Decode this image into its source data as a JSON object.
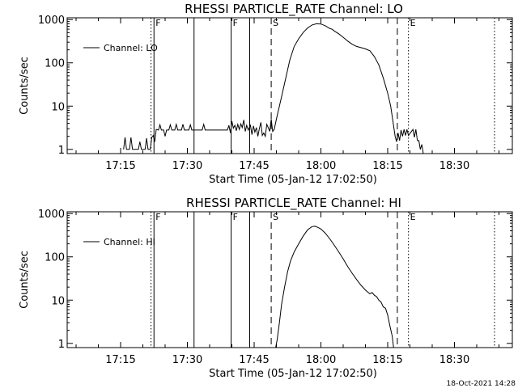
{
  "footer": {
    "date_stamp": "18-Oct-2021 14:28"
  },
  "chart_data": [
    {
      "type": "line",
      "title": "RHESSI PARTICLE_RATE Channel: LO",
      "xlabel": "Start Time (05-Jan-12 17:02:50)",
      "ylabel": "Counts/sec",
      "y_scale": "log",
      "xlim": [
        "17:03",
        "18:43"
      ],
      "ylim": [
        0.8,
        1100
      ],
      "x_ticks": [
        "17:15",
        "17:30",
        "17:45",
        "18:00",
        "18:15",
        "18:30"
      ],
      "y_ticks": [
        "1",
        "10",
        "100",
        "1000"
      ],
      "legend": {
        "label": "Channel: LO",
        "position": "top-left"
      },
      "markers": [
        {
          "time": "17:22:30",
          "label": "F",
          "style": "solid"
        },
        {
          "time": "17:31:30",
          "label": "",
          "style": "solid"
        },
        {
          "time": "17:39:50",
          "label": "F",
          "style": "solid"
        },
        {
          "time": "17:44:00",
          "label": "",
          "style": "solid"
        },
        {
          "time": "17:48:50",
          "label": "S",
          "style": "dashed"
        },
        {
          "time": "18:17:10",
          "label": "",
          "style": "dashed"
        },
        {
          "time": "18:19:40",
          "label": "E",
          "style": "dotted"
        },
        {
          "time": "17:21:50",
          "label": "",
          "style": "dotted"
        },
        {
          "time": "18:39:00",
          "label": "",
          "style": "dotted"
        }
      ],
      "series": [
        {
          "name": "Channel: LO",
          "points": [
            [
              "17:15:40",
              1
            ],
            [
              "17:16:00",
              1.9
            ],
            [
              "17:16:20",
              1
            ],
            [
              "17:17:00",
              1
            ],
            [
              "17:17:20",
              1.9
            ],
            [
              "17:17:40",
              1
            ],
            [
              "17:19:00",
              1
            ],
            [
              "17:19:20",
              1.5
            ],
            [
              "17:19:40",
              1
            ],
            [
              "17:20:30",
              1
            ],
            [
              "17:20:50",
              1.8
            ],
            [
              "17:21:10",
              1
            ],
            [
              "17:21:40",
              1
            ],
            [
              "17:22:00",
              1.9
            ],
            [
              "17:22:20",
              2.1
            ],
            [
              "17:22:40",
              1.5
            ],
            [
              "17:23:00",
              2.9
            ],
            [
              "17:23:30",
              2.8
            ],
            [
              "17:23:50",
              3.7
            ],
            [
              "17:24:10",
              2.8
            ],
            [
              "17:24:40",
              2.8
            ],
            [
              "17:25:00",
              2
            ],
            [
              "17:25:20",
              2.8
            ],
            [
              "17:25:50",
              2.8
            ],
            [
              "17:26:10",
              3.7
            ],
            [
              "17:26:30",
              2.8
            ],
            [
              "17:27:10",
              2.8
            ],
            [
              "17:27:30",
              3.8
            ],
            [
              "17:27:50",
              2.8
            ],
            [
              "17:28:40",
              2.8
            ],
            [
              "17:29:00",
              3.8
            ],
            [
              "17:29:20",
              2.8
            ],
            [
              "17:30:20",
              2.8
            ],
            [
              "17:30:40",
              3.7
            ],
            [
              "17:31:00",
              2.8
            ],
            [
              "17:33:20",
              2.8
            ],
            [
              "17:33:40",
              3.8
            ],
            [
              "17:34:00",
              2.8
            ],
            [
              "17:39:00",
              2.8
            ],
            [
              "17:39:20",
              3.6
            ],
            [
              "17:39:40",
              2.4
            ],
            [
              "17:40:00",
              4.5
            ],
            [
              "17:40:20",
              3.1
            ],
            [
              "17:40:40",
              3.6
            ],
            [
              "17:41:00",
              2.7
            ],
            [
              "17:41:20",
              3.8
            ],
            [
              "17:41:40",
              2.9
            ],
            [
              "17:42:00",
              3.9
            ],
            [
              "17:42:20",
              3.2
            ],
            [
              "17:42:40",
              4.8
            ],
            [
              "17:43:00",
              2.6
            ],
            [
              "17:43:20",
              3.6
            ],
            [
              "17:43:40",
              2.8
            ],
            [
              "17:44:10",
              3.6
            ],
            [
              "17:44:30",
              2.2
            ],
            [
              "17:44:50",
              3.5
            ],
            [
              "17:45:10",
              2.5
            ],
            [
              "17:45:30",
              3.2
            ],
            [
              "17:45:50",
              2
            ],
            [
              "17:46:10",
              3
            ],
            [
              "17:46:30",
              4.2
            ],
            [
              "17:46:50",
              2.1
            ],
            [
              "17:47:10",
              2.4
            ],
            [
              "17:47:30",
              2
            ],
            [
              "17:47:50",
              3.8
            ],
            [
              "17:48:10",
              3.2
            ],
            [
              "17:48:30",
              2.6
            ],
            [
              "17:48:50",
              5
            ],
            [
              "17:49:10",
              2.6
            ],
            [
              "17:49:30",
              2.9
            ],
            [
              "17:50:00",
              5
            ],
            [
              "17:51:00",
              14
            ],
            [
              "17:52:00",
              40
            ],
            [
              "17:53:00",
              115
            ],
            [
              "17:54:00",
              240
            ],
            [
              "17:55:00",
              360
            ],
            [
              "17:56:00",
              500
            ],
            [
              "17:57:00",
              640
            ],
            [
              "17:58:00",
              750
            ],
            [
              "17:59:00",
              800
            ],
            [
              "18:00:00",
              790
            ],
            [
              "18:01:00",
              720
            ],
            [
              "18:02:00",
              620
            ],
            [
              "18:02:30",
              600
            ],
            [
              "18:03:00",
              545
            ],
            [
              "18:04:00",
              470
            ],
            [
              "18:05:00",
              390
            ],
            [
              "18:06:00",
              320
            ],
            [
              "18:07:00",
              270
            ],
            [
              "18:08:00",
              240
            ],
            [
              "18:09:00",
              225
            ],
            [
              "18:10:00",
              210
            ],
            [
              "18:11:00",
              190
            ],
            [
              "18:12:00",
              140
            ],
            [
              "18:13:00",
              90
            ],
            [
              "18:14:00",
              45
            ],
            [
              "18:15:00",
              20
            ],
            [
              "18:15:40",
              10
            ],
            [
              "18:16:20",
              3.5
            ],
            [
              "18:16:40",
              2
            ],
            [
              "18:17:00",
              1.5
            ],
            [
              "18:17:20",
              2.4
            ],
            [
              "18:17:40",
              1.6
            ],
            [
              "18:18:00",
              2.8
            ],
            [
              "18:18:20",
              2
            ],
            [
              "18:18:40",
              2.9
            ],
            [
              "18:19:00",
              2.1
            ],
            [
              "18:19:20",
              2.9
            ],
            [
              "18:19:40",
              2.1
            ],
            [
              "18:20:40",
              2.9
            ],
            [
              "18:21:00",
              1.9
            ],
            [
              "18:21:20",
              2.9
            ],
            [
              "18:21:40",
              1.6
            ],
            [
              "18:22:00",
              1.6
            ],
            [
              "18:22:20",
              1
            ],
            [
              "18:22:40",
              1.3
            ],
            [
              "18:23:00",
              0.8
            ]
          ]
        }
      ]
    },
    {
      "type": "line",
      "title": "RHESSI PARTICLE_RATE Channel: HI",
      "xlabel": "Start Time (05-Jan-12 17:02:50)",
      "ylabel": "Counts/sec",
      "y_scale": "log",
      "xlim": [
        "17:03",
        "18:43"
      ],
      "ylim": [
        0.8,
        1100
      ],
      "x_ticks": [
        "17:15",
        "17:30",
        "17:45",
        "18:00",
        "18:15",
        "18:30"
      ],
      "y_ticks": [
        "1",
        "10",
        "100",
        "1000"
      ],
      "legend": {
        "label": "Channel: HI",
        "position": "top-left"
      },
      "markers": [
        {
          "time": "17:22:30",
          "label": "F",
          "style": "solid"
        },
        {
          "time": "17:31:30",
          "label": "",
          "style": "solid"
        },
        {
          "time": "17:39:50",
          "label": "F",
          "style": "solid"
        },
        {
          "time": "17:44:00",
          "label": "",
          "style": "solid"
        },
        {
          "time": "17:48:50",
          "label": "S",
          "style": "dashed"
        },
        {
          "time": "18:17:10",
          "label": "",
          "style": "dashed"
        },
        {
          "time": "18:19:40",
          "label": "E",
          "style": "dotted"
        },
        {
          "time": "17:21:50",
          "label": "",
          "style": "dotted"
        },
        {
          "time": "18:39:00",
          "label": "",
          "style": "dotted"
        }
      ],
      "series": [
        {
          "name": "Channel: HI",
          "points": [
            [
              "17:49:50",
              0.8
            ],
            [
              "17:50:10",
              1.2
            ],
            [
              "17:50:40",
              3
            ],
            [
              "17:51:10",
              8
            ],
            [
              "17:51:50",
              20
            ],
            [
              "17:52:30",
              45
            ],
            [
              "17:53:10",
              80
            ],
            [
              "17:54:00",
              130
            ],
            [
              "17:55:00",
              200
            ],
            [
              "17:56:00",
              300
            ],
            [
              "17:57:00",
              420
            ],
            [
              "17:58:00",
              500
            ],
            [
              "17:58:40",
              510
            ],
            [
              "17:59:20",
              480
            ],
            [
              "18:00:00",
              440
            ],
            [
              "18:01:00",
              350
            ],
            [
              "18:02:00",
              260
            ],
            [
              "18:03:00",
              185
            ],
            [
              "18:04:00",
              130
            ],
            [
              "18:05:00",
              90
            ],
            [
              "18:06:00",
              60
            ],
            [
              "18:07:00",
              42
            ],
            [
              "18:08:00",
              30
            ],
            [
              "18:09:00",
              22
            ],
            [
              "18:10:00",
              17
            ],
            [
              "18:11:00",
              14
            ],
            [
              "18:11:30",
              15
            ],
            [
              "18:12:00",
              13
            ],
            [
              "18:12:30",
              12
            ],
            [
              "18:13:00",
              10
            ],
            [
              "18:13:30",
              9
            ],
            [
              "18:14:00",
              7
            ],
            [
              "18:14:30",
              6.5
            ],
            [
              "18:15:00",
              4.5
            ],
            [
              "18:15:30",
              2.5
            ],
            [
              "18:16:00",
              1.5
            ],
            [
              "18:16:20",
              0.8
            ]
          ]
        }
      ]
    }
  ]
}
